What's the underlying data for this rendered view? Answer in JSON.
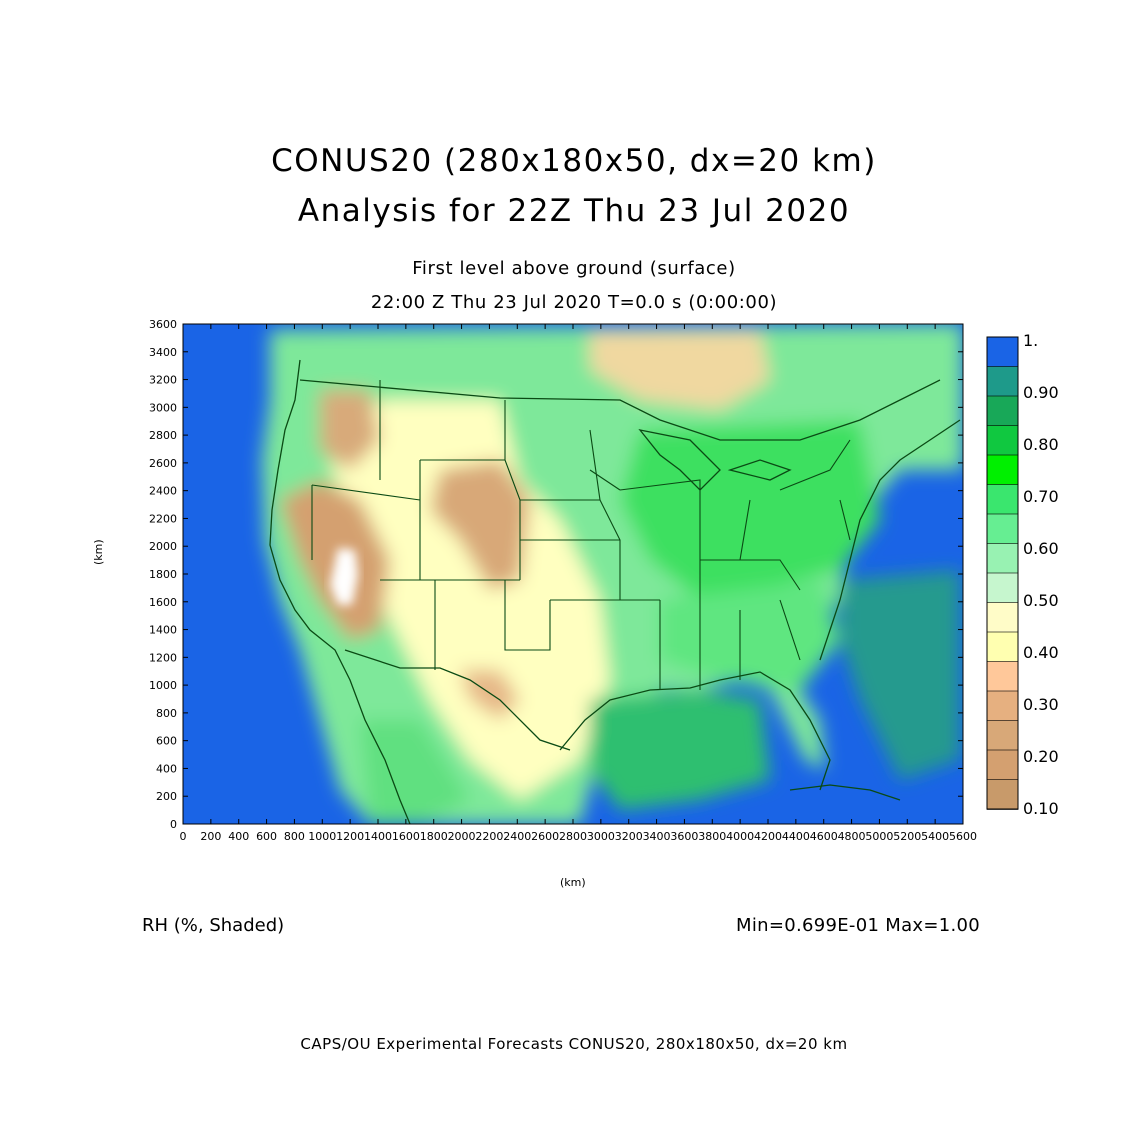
{
  "title": {
    "line1": "CONUS20 (280x180x50, dx=20 km)",
    "line2": "Analysis for 22Z Thu 23 Jul 2020"
  },
  "subtitle": {
    "level": "First level above ground (surface)",
    "time": "22:00 Z Thu 23 Jul 2020    T=0.0 s (0:00:00)"
  },
  "map": {
    "x_axis": {
      "label": "(km)",
      "min": 0,
      "max": 5600,
      "step": 200
    },
    "y_axis": {
      "label": "(km)",
      "min": 0,
      "max": 3600,
      "step": 200
    },
    "colors": {
      "ocean": "#1a64e6",
      "land_dry": "#c89a6a",
      "land_mid": "#ffffb8",
      "land_moist": "#4de066",
      "borders": "#0a4a14"
    }
  },
  "colorbar": {
    "labels": [
      "1.",
      "0.90",
      "0.80",
      "0.70",
      "0.60",
      "0.50",
      "0.40",
      "0.30",
      "0.20",
      "0.10"
    ],
    "colors": [
      "#1a64e6",
      "#1e9a8a",
      "#18a858",
      "#10c840",
      "#00f000",
      "#3ae66e",
      "#66ee92",
      "#98f2b2",
      "#c6f6ce",
      "#fffcc8",
      "#ffffb0",
      "#ffc89a",
      "#e6b080",
      "#d8a878",
      "#d4a070",
      "#c89a6a"
    ]
  },
  "variable_label": "RH (%, Shaded)",
  "min_max": "Min=0.699E-01 Max=1.00",
  "footer": "CAPS/OU Experimental Forecasts  CONUS20, 280x180x50, dx=20 km"
}
